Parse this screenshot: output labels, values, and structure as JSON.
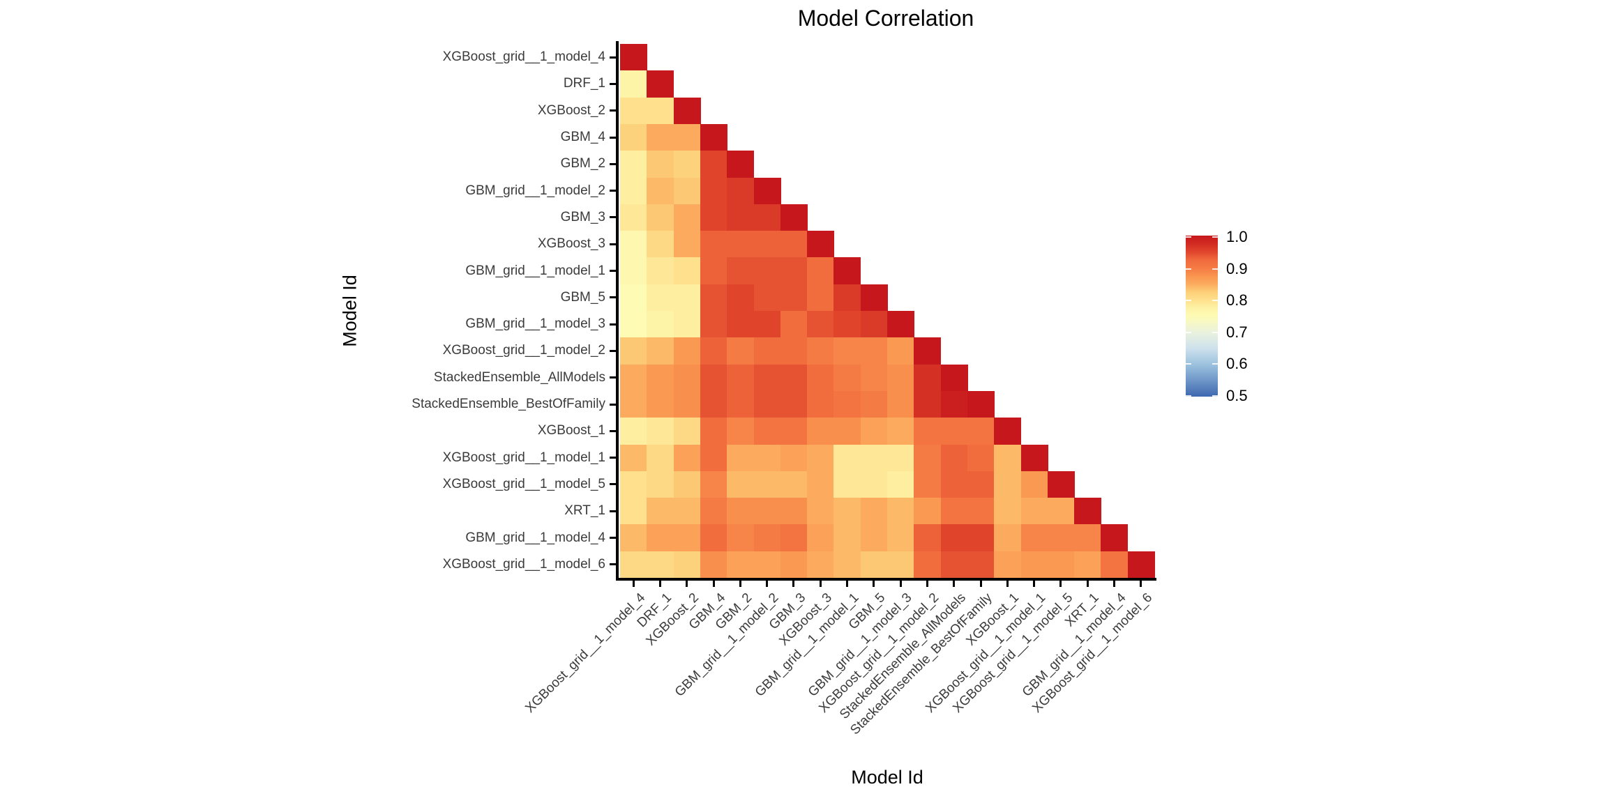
{
  "title": "Model Correlation",
  "axes": {
    "x_label": "Model Id",
    "y_label": "Model Id"
  },
  "colorbar": {
    "tick_labels": [
      "1.0",
      "0.9",
      "0.8",
      "0.7",
      "0.6",
      "0.5"
    ],
    "min": 0.5,
    "max": 1.0
  },
  "chart_data": {
    "type": "heatmap",
    "title": "Model Correlation",
    "xlabel": "Model Id",
    "ylabel": "Model Id",
    "shape": "lower-triangular",
    "value_range": [
      0.5,
      1.0
    ],
    "colormap": "RdYlBu reversed (red = high correlation)",
    "legend_position": "right",
    "categories": [
      "XGBoost_grid__1_model_4",
      "DRF_1",
      "XGBoost_2",
      "GBM_4",
      "GBM_2",
      "GBM_grid__1_model_2",
      "GBM_3",
      "XGBoost_3",
      "GBM_grid__1_model_1",
      "GBM_5",
      "GBM_grid__1_model_3",
      "XGBoost_grid__1_model_2",
      "StackedEnsemble_AllModels",
      "StackedEnsemble_BestOfFamily",
      "XGBoost_1",
      "XGBoost_grid__1_model_1",
      "XGBoost_grid__1_model_5",
      "XRT_1",
      "GBM_grid__1_model_4",
      "XGBoost_grid__1_model_6"
    ],
    "colormap_stops": [
      [
        0.5,
        "#3e68b1"
      ],
      [
        0.55,
        "#6e96c8"
      ],
      [
        0.6,
        "#9cc2de"
      ],
      [
        0.65,
        "#cee1ec"
      ],
      [
        0.7,
        "#eaf2dd"
      ],
      [
        0.75,
        "#fefbb5"
      ],
      [
        0.775,
        "#fdf2a5"
      ],
      [
        0.8,
        "#fee08d"
      ],
      [
        0.825,
        "#fdcf78"
      ],
      [
        0.85,
        "#fcab5e"
      ],
      [
        0.875,
        "#f9944f"
      ],
      [
        0.9,
        "#f57b45"
      ],
      [
        0.925,
        "#f0693c"
      ],
      [
        0.95,
        "#e0452c"
      ],
      [
        0.975,
        "#d22b22"
      ],
      [
        1.0,
        "#c5171c"
      ]
    ],
    "matrix_lower_triangle": [
      [
        1.0
      ],
      [
        0.77,
        1.0
      ],
      [
        0.8,
        0.8,
        1.0
      ],
      [
        0.82,
        0.85,
        0.85,
        1.0
      ],
      [
        0.78,
        0.83,
        0.82,
        0.95,
        1.0
      ],
      [
        0.78,
        0.84,
        0.83,
        0.95,
        0.96,
        1.0
      ],
      [
        0.79,
        0.83,
        0.85,
        0.95,
        0.96,
        0.96,
        1.0
      ],
      [
        0.76,
        0.81,
        0.85,
        0.93,
        0.93,
        0.93,
        0.93,
        1.0
      ],
      [
        0.76,
        0.79,
        0.8,
        0.93,
        0.94,
        0.94,
        0.94,
        0.92,
        1.0
      ],
      [
        0.75,
        0.78,
        0.78,
        0.94,
        0.95,
        0.94,
        0.94,
        0.92,
        0.96,
        1.0
      ],
      [
        0.75,
        0.77,
        0.78,
        0.94,
        0.95,
        0.95,
        0.92,
        0.94,
        0.95,
        0.96,
        1.0
      ],
      [
        0.83,
        0.84,
        0.87,
        0.93,
        0.9,
        0.92,
        0.92,
        0.9,
        0.89,
        0.89,
        0.87,
        1.0
      ],
      [
        0.85,
        0.87,
        0.88,
        0.94,
        0.93,
        0.94,
        0.94,
        0.92,
        0.9,
        0.89,
        0.88,
        0.97,
        1.0
      ],
      [
        0.85,
        0.87,
        0.88,
        0.94,
        0.93,
        0.94,
        0.94,
        0.92,
        0.91,
        0.9,
        0.88,
        0.97,
        0.99,
        1.0
      ],
      [
        0.78,
        0.79,
        0.81,
        0.92,
        0.89,
        0.91,
        0.91,
        0.88,
        0.88,
        0.86,
        0.85,
        0.91,
        0.91,
        0.91,
        1.0
      ],
      [
        0.84,
        0.81,
        0.86,
        0.92,
        0.85,
        0.85,
        0.86,
        0.85,
        0.79,
        0.79,
        0.79,
        0.9,
        0.93,
        0.92,
        0.84,
        1.0
      ],
      [
        0.8,
        0.81,
        0.83,
        0.89,
        0.84,
        0.84,
        0.84,
        0.85,
        0.79,
        0.79,
        0.78,
        0.9,
        0.93,
        0.93,
        0.84,
        0.87,
        1.0
      ],
      [
        0.8,
        0.84,
        0.84,
        0.9,
        0.88,
        0.88,
        0.88,
        0.85,
        0.84,
        0.85,
        0.84,
        0.87,
        0.91,
        0.91,
        0.84,
        0.85,
        0.85,
        1.0
      ],
      [
        0.84,
        0.86,
        0.86,
        0.92,
        0.89,
        0.9,
        0.91,
        0.86,
        0.84,
        0.85,
        0.84,
        0.93,
        0.95,
        0.95,
        0.85,
        0.89,
        0.89,
        0.89,
        1.0
      ],
      [
        0.81,
        0.81,
        0.82,
        0.88,
        0.86,
        0.86,
        0.87,
        0.85,
        0.84,
        0.83,
        0.83,
        0.92,
        0.94,
        0.94,
        0.86,
        0.87,
        0.87,
        0.86,
        0.91,
        1.0
      ]
    ]
  }
}
